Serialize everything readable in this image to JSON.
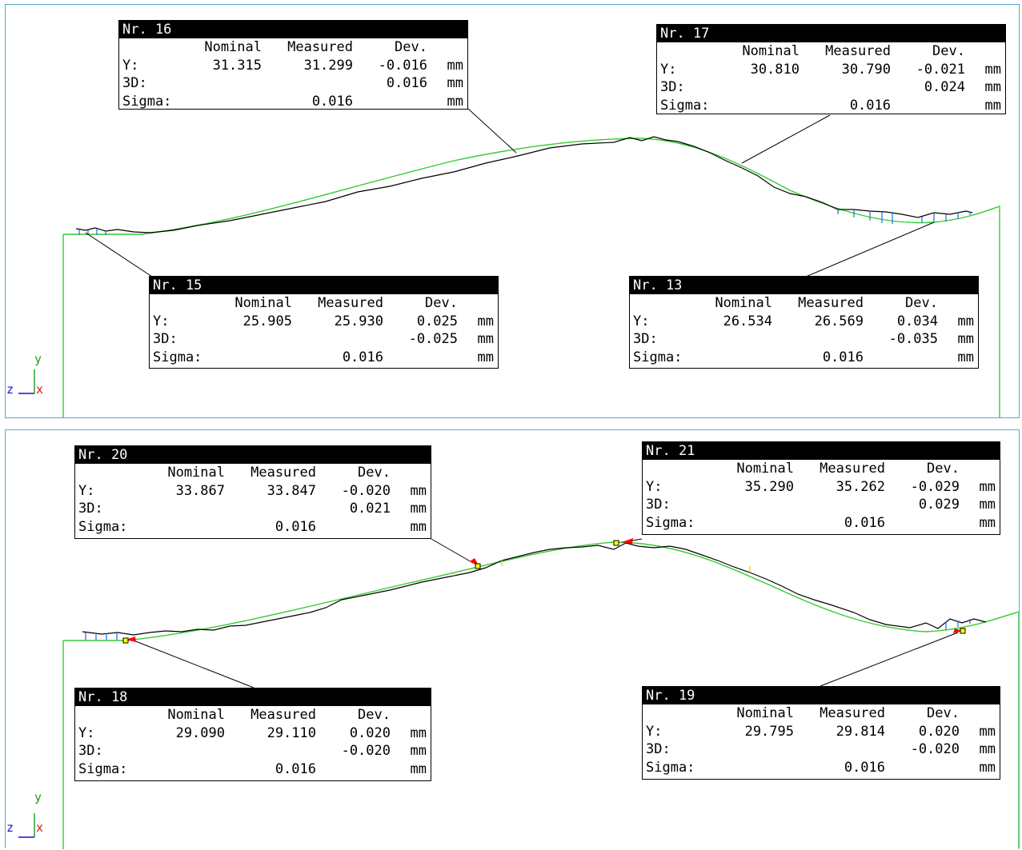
{
  "header_prefix": "Nr.",
  "column_headers": {
    "nominal": "Nominal",
    "measured": "Measured",
    "dev": "Dev."
  },
  "row_labels": {
    "y": "Y:",
    "d3": "3D:",
    "sigma": "Sigma:"
  },
  "unit": "mm",
  "axis_labels": {
    "y": "y",
    "x": "x",
    "z": "z"
  },
  "colors": {
    "nominal_curve": "#33cc33",
    "measured_curve": "#000000",
    "deviation": "#1a6fe0",
    "panel_border": "#5aa7c9",
    "marker": "#ff0000",
    "point": "#ffff00"
  },
  "top_panel": {
    "boxes": [
      {
        "id": "16",
        "title": "Nr. 16",
        "nominal": "31.315",
        "measured": "31.299",
        "dev": "-0.016",
        "d3": "0.016",
        "sigma": "0.016"
      },
      {
        "id": "17",
        "title": "Nr. 17",
        "nominal": "30.810",
        "measured": "30.790",
        "dev": "-0.021",
        "d3": "0.024",
        "sigma": "0.016"
      },
      {
        "id": "15",
        "title": "Nr. 15",
        "nominal": "25.905",
        "measured": "25.930",
        "dev": "0.025",
        "d3": "-0.025",
        "sigma": "0.016"
      },
      {
        "id": "13",
        "title": "Nr. 13",
        "nominal": "26.534",
        "measured": "26.569",
        "dev": "0.034",
        "d3": "-0.035",
        "sigma": "0.016"
      }
    ]
  },
  "bottom_panel": {
    "boxes": [
      {
        "id": "20",
        "title": "Nr. 20",
        "nominal": "33.867",
        "measured": "33.847",
        "dev": "-0.020",
        "d3": "0.021",
        "sigma": "0.016"
      },
      {
        "id": "21",
        "title": "Nr. 21",
        "nominal": "35.290",
        "measured": "35.262",
        "dev": "-0.029",
        "d3": "0.029",
        "sigma": "0.016"
      },
      {
        "id": "18",
        "title": "Nr. 18",
        "nominal": "29.090",
        "measured": "29.110",
        "dev": "0.020",
        "d3": "-0.020",
        "sigma": "0.016"
      },
      {
        "id": "19",
        "title": "Nr. 19",
        "nominal": "29.795",
        "measured": "29.814",
        "dev": "0.020",
        "d3": "-0.020",
        "sigma": "0.016"
      }
    ]
  }
}
